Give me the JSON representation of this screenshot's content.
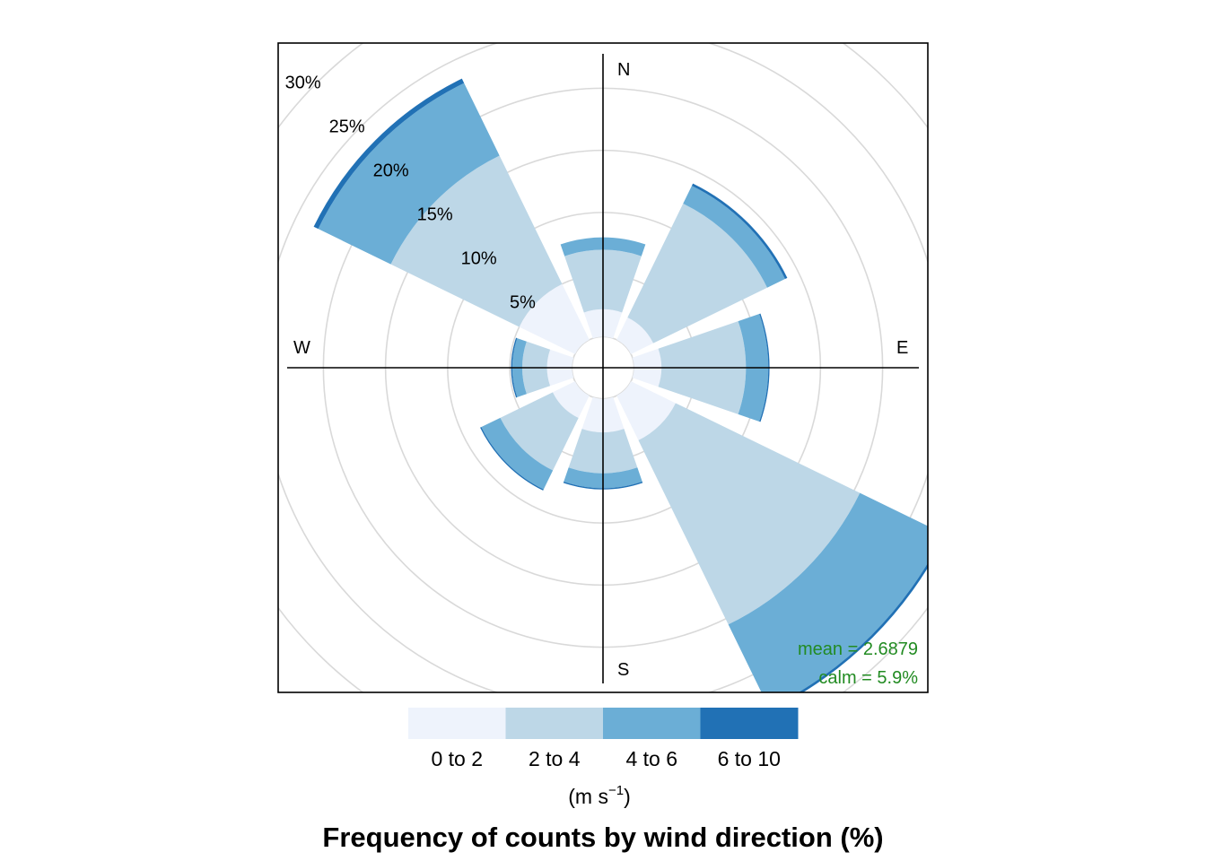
{
  "chart_data": {
    "type": "wind-rose",
    "title": "Frequency of counts by wind direction (%)",
    "unit_label": {
      "main": "(m s",
      "exponent": "−1",
      "close": ")"
    },
    "compass": [
      "N",
      "E",
      "S",
      "W"
    ],
    "ring_labels": [
      "5%",
      "10%",
      "15%",
      "20%",
      "25%",
      "30%"
    ],
    "ring_values": [
      5,
      10,
      15,
      20,
      25,
      30,
      35
    ],
    "legend": {
      "categories": [
        "0 to 2",
        "2 to 4",
        "4 to 6",
        "6 to 10"
      ],
      "colors": [
        "#eef3fc",
        "#bdd7e7",
        "#6baed6",
        "#2171b5"
      ]
    },
    "stats": {
      "mean": "mean = 2.6879",
      "calm": "calm = 5.9%"
    },
    "directions_deg": [
      0,
      45,
      90,
      135,
      180,
      225,
      270,
      315
    ],
    "cumulative_percent": [
      [
        2.2,
        7.0,
        8.0,
        8.0
      ],
      [
        2.0,
        12.2,
        13.8,
        14.0
      ],
      [
        2.2,
        9.0,
        10.8,
        10.9
      ],
      [
        4.0,
        20.5,
        28.0,
        28.2
      ],
      [
        2.7,
        6.0,
        7.2,
        7.3
      ],
      [
        2.0,
        6.7,
        8.4,
        8.5
      ],
      [
        2.0,
        4.0,
        4.8,
        4.9
      ],
      [
        5.0,
        16.5,
        23.0,
        23.4
      ]
    ],
    "r_offset_percent": 2.5
  }
}
